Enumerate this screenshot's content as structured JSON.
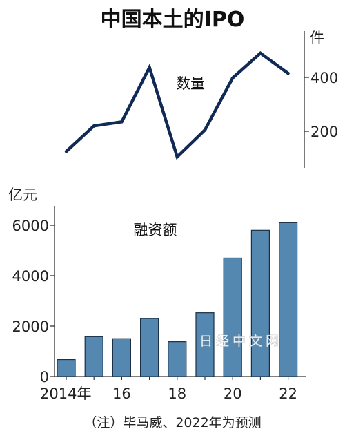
{
  "title": "中国本土的IPO",
  "note": "（注）毕马威、2022年为预测",
  "watermark": "日经中文网",
  "colors": {
    "line": "#112a55",
    "bar": "#5588b0",
    "bar_stroke": "#1b2f46",
    "axis": "#333333"
  },
  "chart_data": [
    {
      "type": "line",
      "label": "数量",
      "unit": "件",
      "x": [
        2014,
        2015,
        2016,
        2017,
        2018,
        2019,
        2020,
        2021,
        2022
      ],
      "values": [
        125,
        220,
        235,
        437,
        105,
        205,
        398,
        490,
        415
      ],
      "ylim": [
        50,
        520
      ],
      "yticks": [
        200,
        400
      ],
      "ytick_labels": [
        "200",
        "400"
      ],
      "grid": false
    },
    {
      "type": "bar",
      "label": "融资额",
      "unit": "亿元",
      "categories": [
        "2014年",
        "2015",
        "2016",
        "2017",
        "2018",
        "2019",
        "2020",
        "2021",
        "2022"
      ],
      "x_tick_labels": [
        {
          "index": 0,
          "text": "2014年"
        },
        {
          "index": 2,
          "text": "16"
        },
        {
          "index": 4,
          "text": "18"
        },
        {
          "index": 6,
          "text": "20"
        },
        {
          "index": 8,
          "text": "22"
        }
      ],
      "values": [
        670,
        1580,
        1500,
        2300,
        1380,
        2530,
        4700,
        5800,
        6100
      ],
      "ylim": [
        0,
        6900
      ],
      "yticks": [
        0,
        2000,
        4000,
        6000
      ],
      "ytick_labels": [
        "0",
        "2000",
        "4000",
        "6000"
      ],
      "grid": false
    }
  ]
}
